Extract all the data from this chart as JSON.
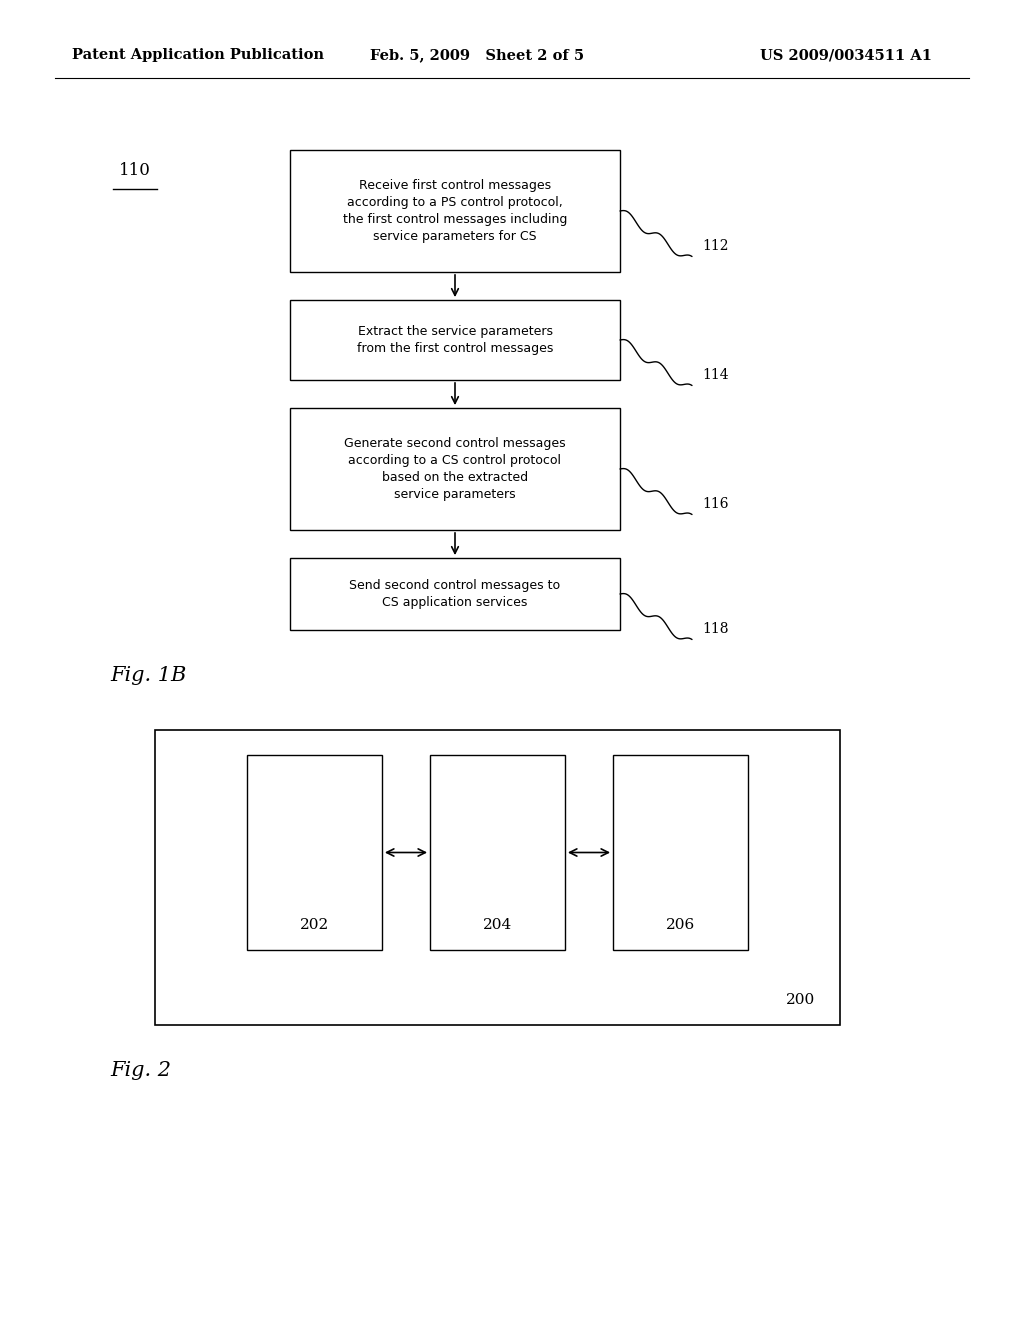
{
  "bg_color": "#ffffff",
  "page_width": 10.24,
  "page_height": 13.2,
  "header": {
    "left": "Patent Application Publication",
    "center": "Feb. 5, 2009   Sheet 2 of 5",
    "right": "US 2009/0034511 A1",
    "fontsize": 10.5
  },
  "fig1b": {
    "label": "Fig. 1B",
    "label_fontsize": 15,
    "ref110": "110",
    "boxes": [
      {
        "text": "Receive first control messages\naccording to a PS control protocol,\nthe first control messages including\nservice parameters for CS",
        "ref": "112",
        "fontsize": 9.0
      },
      {
        "text": "Extract the service parameters\nfrom the first control messages",
        "ref": "114",
        "fontsize": 9.0
      },
      {
        "text": "Generate second control messages\naccording to a CS control protocol\nbased on the extracted\nservice parameters",
        "ref": "116",
        "fontsize": 9.0
      },
      {
        "text": "Send second control messages to\nCS application services",
        "ref": "118",
        "fontsize": 9.0
      }
    ]
  },
  "fig2": {
    "label": "Fig. 2",
    "label_fontsize": 15,
    "ref200": "200",
    "box_labels": [
      "202",
      "204",
      "206"
    ],
    "label_fontsize2": 11
  }
}
